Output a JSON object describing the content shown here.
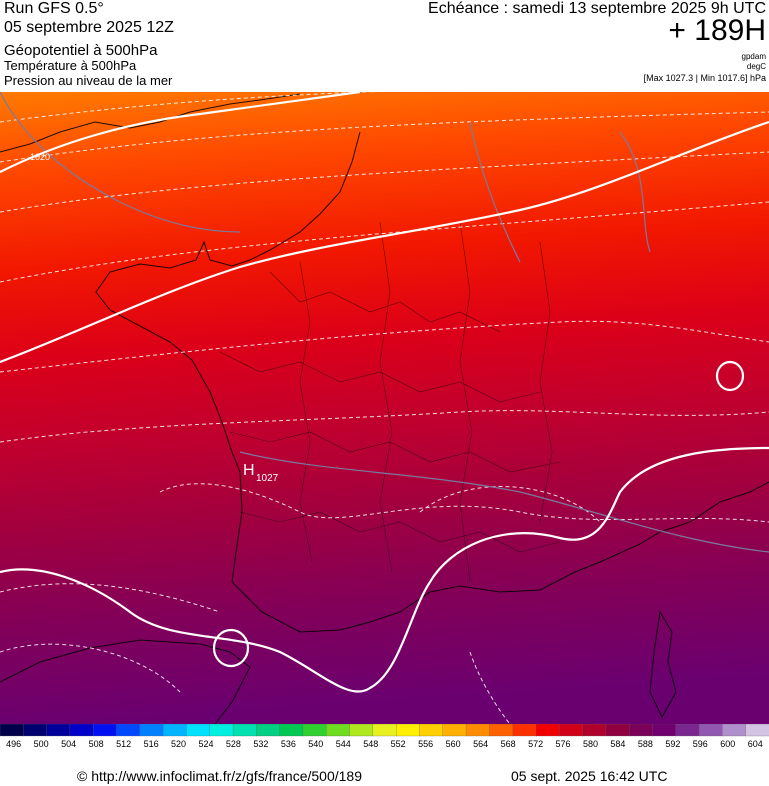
{
  "header": {
    "run": "Run GFS 0.5°",
    "date": "05 septembre 2025 12Z",
    "field1": "Géopotentiel à 500hPa",
    "field2": "Température à 500hPa",
    "field3": "Pression au niveau de la mer",
    "echeance": "Echéance : samedi 13 septembre 2025 9h UTC",
    "hours": "+ 189H",
    "unit1": "gpdam",
    "unit2": "degC",
    "minmax": "[Max 1027.3 | Min 1017.6] hPa"
  },
  "map": {
    "high_label": "H",
    "high_value": "1027",
    "isobar_label": "1020"
  },
  "colorbar": {
    "ticks": [
      "496",
      "500",
      "504",
      "508",
      "512",
      "516",
      "520",
      "524",
      "528",
      "532",
      "536",
      "540",
      "544",
      "548",
      "552",
      "556",
      "560",
      "564",
      "568",
      "572",
      "576",
      "580",
      "584",
      "588",
      "592",
      "596",
      "600",
      "604"
    ],
    "colors": [
      "#00004a",
      "#00006e",
      "#00009a",
      "#0000c8",
      "#0010f0",
      "#0048ff",
      "#0080ff",
      "#00b4ff",
      "#00e0ff",
      "#00f0e0",
      "#00e0b0",
      "#00d080",
      "#00c850",
      "#30d030",
      "#70dc20",
      "#b0e820",
      "#e8f020",
      "#fff000",
      "#ffd000",
      "#ffb000",
      "#ff8c00",
      "#ff6000",
      "#ff3000",
      "#f00000",
      "#d00018",
      "#b0002c",
      "#900040",
      "#7a0058",
      "#700070",
      "#7a2890",
      "#9058b0",
      "#b090cc",
      "#d4c4e4"
    ]
  },
  "footer": {
    "url": "© http://www.infoclimat.fr/z/gfs/france/500/189",
    "stamp": "05 sept. 2025 16:42 UTC"
  }
}
